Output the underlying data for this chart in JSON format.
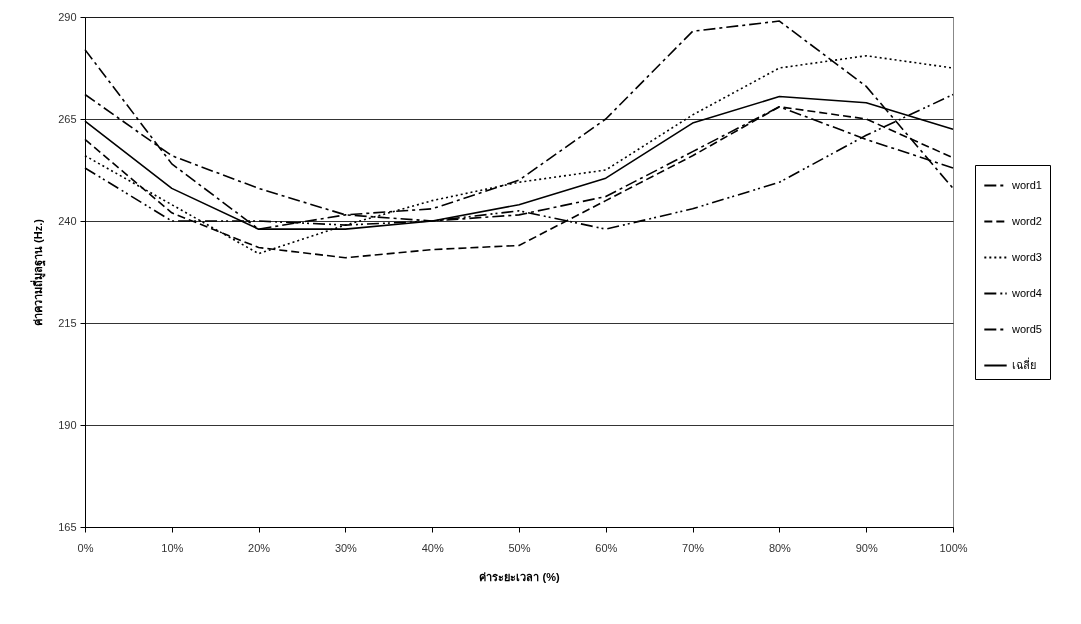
{
  "chart_data": {
    "type": "line",
    "xlabel": "ค่าระยะเวลา (%)",
    "ylabel": "ค่าความถี่มูลฐาน (Hz.)",
    "x": [
      0,
      10,
      20,
      30,
      40,
      50,
      60,
      70,
      80,
      90,
      100
    ],
    "xlim": [
      0,
      100
    ],
    "xticks": [
      {
        "value": 0,
        "label": "0%"
      },
      {
        "value": 10,
        "label": "10%"
      },
      {
        "value": 20,
        "label": "20%"
      },
      {
        "value": 30,
        "label": "30%"
      },
      {
        "value": 40,
        "label": "40%"
      },
      {
        "value": 50,
        "label": "50%"
      },
      {
        "value": 60,
        "label": "60%"
      },
      {
        "value": 70,
        "label": "70%"
      },
      {
        "value": 80,
        "label": "80%"
      },
      {
        "value": 90,
        "label": "90%"
      },
      {
        "value": 100,
        "label": "100%"
      }
    ],
    "ylim": [
      165,
      290
    ],
    "yticks": [
      165,
      190,
      215,
      240,
      265,
      290
    ],
    "grid": "y",
    "legend": "right",
    "marker": "none",
    "series": [
      {
        "name": "word1",
        "color": "#000000",
        "line_style": "dashdot",
        "values": [
          282,
          254,
          238,
          241.5,
          243,
          250,
          265,
          286.5,
          289,
          273,
          248
        ]
      },
      {
        "name": "word2",
        "color": "#000000",
        "line_style": "dashed",
        "values": [
          260,
          242,
          233.5,
          231,
          233,
          234,
          245,
          256,
          268,
          265,
          255.5
        ]
      },
      {
        "name": "word3",
        "color": "#000000",
        "line_style": "dotted",
        "values": [
          256,
          244,
          232,
          239,
          245,
          249.5,
          252.5,
          266,
          277.5,
          280.5,
          277.5
        ]
      },
      {
        "name": "word4",
        "color": "#000000",
        "line_style": "dashdotdot",
        "values": [
          253,
          240,
          240,
          239,
          240,
          242.5,
          238,
          243,
          249.5,
          261,
          271
        ]
      },
      {
        "name": "word5",
        "color": "#000000",
        "line_style": "dashdot",
        "values": [
          271,
          256,
          248,
          241.5,
          240,
          241.5,
          246,
          257,
          268,
          260,
          253
        ]
      },
      {
        "name": "เฉลี่ย",
        "color": "#000000",
        "line_style": "solid",
        "values": [
          264.5,
          248,
          238,
          238,
          240,
          244,
          250.5,
          264,
          270.5,
          269,
          262.5
        ]
      }
    ]
  }
}
